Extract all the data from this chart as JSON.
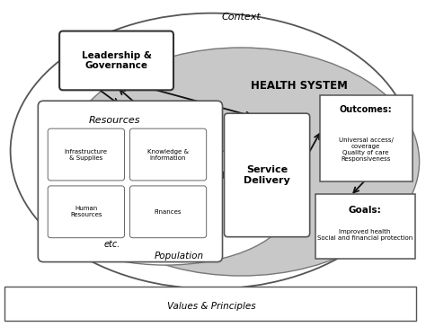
{
  "fig_width": 4.74,
  "fig_height": 3.64,
  "dpi": 100,
  "bg_color": "#ffffff",
  "context_label": "Context",
  "health_system_label": "HEALTH SYSTEM",
  "population_label": "Population",
  "values_label": "Values & Principles",
  "leadership_label": "Leadership &\nGovernance",
  "resources_label": "Resources",
  "service_delivery_label": "Service\nDelivery",
  "outcomes_label": "Outcomes:",
  "outcomes_detail": "Universal access/\ncoverage\nQuality of care\nResponsiveness",
  "goals_label": "Goals:",
  "goals_detail": "Improved health\nSocial and financial protection",
  "etc_label": "etc.",
  "gray_fill": "#c8c8c8",
  "light_gray": "#e0e0e0",
  "white": "#ffffff",
  "arrow_color": "#111111"
}
